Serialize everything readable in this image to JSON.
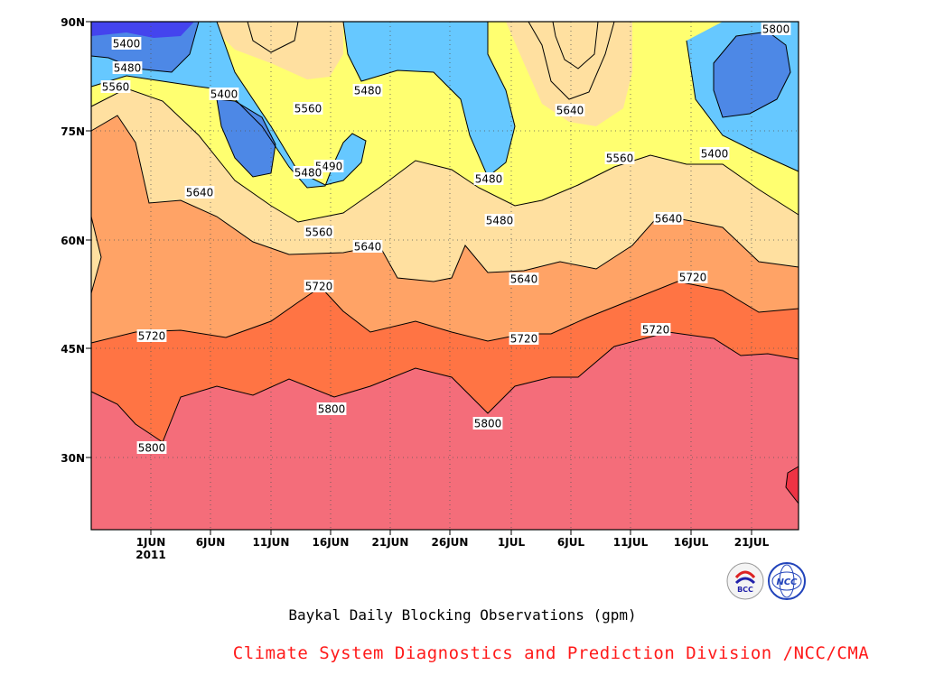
{
  "chart_data": {
    "type": "heatmap",
    "subtype": "filled-contour",
    "title": "Baykal Daily Blocking Observations (gpm)",
    "credit": "Climate System Diagnostics and Prediction Division /NCC/CMA",
    "x_ticks": [
      "1JUN",
      "6JUN",
      "11JUN",
      "16JUN",
      "21JUN",
      "26JUN",
      "1JUL",
      "6JUL",
      "11JUL",
      "16JUL",
      "21JUL"
    ],
    "x_year_label": "2011",
    "y_ticks": [
      "90N",
      "75N",
      "60N",
      "45N",
      "30N"
    ],
    "x_range": [
      "2011-05-27",
      "2011-07-26"
    ],
    "y_range": [
      20,
      90
    ],
    "contour_levels": [
      5400,
      5480,
      5560,
      5640,
      5720,
      5800
    ],
    "fill_colors": {
      "above_5800": "#f46d7a",
      "5720_5800": "#ff7444",
      "5640_5720": "#ffa366",
      "5560_5640": "#ffe0a0",
      "5480_5560": "#ffff70",
      "5400_5480": "#66c8ff",
      "below_5400": "#4d88e6",
      "lowest": "#4444ee",
      "highest": "#ee3344"
    },
    "contour_labels": [
      "5400",
      "5480",
      "5560",
      "5400",
      "5560",
      "5480",
      "5480",
      "5490",
      "5480",
      "5560",
      "5640",
      "5640",
      "5560",
      "5640",
      "5720",
      "5640",
      "5720",
      "5720",
      "5640",
      "5720",
      "5720",
      "5800",
      "5800",
      "5800",
      "5800",
      "5400",
      "5480",
      "5560",
      "5640"
    ],
    "grid": true
  },
  "logos": {
    "left_text": "BCC",
    "right_text": "NCC"
  }
}
